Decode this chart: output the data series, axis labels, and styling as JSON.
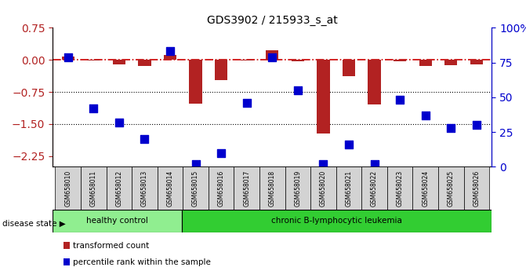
{
  "title": "GDS3902 / 215933_s_at",
  "samples": [
    "GSM658010",
    "GSM658011",
    "GSM658012",
    "GSM658013",
    "GSM658014",
    "GSM658015",
    "GSM658016",
    "GSM658017",
    "GSM658018",
    "GSM658019",
    "GSM658020",
    "GSM658021",
    "GSM658022",
    "GSM658023",
    "GSM658024",
    "GSM658025",
    "GSM658026"
  ],
  "bar_values": [
    0.08,
    -0.02,
    -0.1,
    -0.15,
    0.12,
    -1.02,
    -0.48,
    -0.02,
    0.22,
    -0.04,
    -1.72,
    -0.38,
    -1.05,
    -0.03,
    -0.15,
    -0.12,
    -0.1
  ],
  "pct_values": [
    79,
    42,
    32,
    20,
    83,
    2,
    10,
    46,
    79,
    55,
    2,
    16,
    2,
    48,
    37,
    28,
    30
  ],
  "healthy_count": 5,
  "ylim_left": [
    -2.5,
    0.75
  ],
  "ylim_right": [
    0,
    100
  ],
  "yticks_left": [
    0.75,
    0,
    -0.75,
    -1.5,
    -2.25
  ],
  "yticks_right": [
    100,
    75,
    50,
    25,
    0
  ],
  "hlines": [
    -0.75,
    -1.5
  ],
  "bar_color": "#b22222",
  "dot_color": "#0000cd",
  "dash_color": "#cc0000",
  "healthy_label": "healthy control",
  "disease_label": "chronic B-lymphocytic leukemia",
  "disease_state_label": "disease state",
  "legend_bar": "transformed count",
  "legend_dot": "percentile rank within the sample",
  "bar_width": 0.5,
  "dot_size": 55
}
